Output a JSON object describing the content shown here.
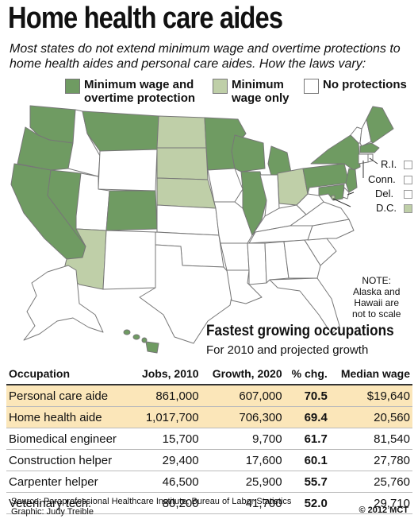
{
  "title": "Home health care aides",
  "subtitle": "Most states do not extend minimum wage and overtime protections to home health aides and personal care aides. How the laws vary:",
  "colors": {
    "full": "#6f9b62",
    "min": "#bfcfa8",
    "none": "#ffffff",
    "border": "#777777",
    "highlight": "#fbe6b9"
  },
  "legend": [
    {
      "line1": "Minimum wage and",
      "line2": "overtime protection",
      "color_key": "full"
    },
    {
      "line1": "Minimum",
      "line2": "wage only",
      "color_key": "min"
    },
    {
      "line1": "No protections",
      "line2": "",
      "color_key": "none"
    }
  ],
  "map": {
    "states_full": [
      "WA",
      "OR",
      "CA",
      "NV",
      "MT",
      "CO",
      "MN",
      "WI",
      "IL",
      "MI",
      "NY",
      "PA",
      "NJ",
      "MD",
      "ME",
      "MA",
      "HI"
    ],
    "states_min": [
      "ND",
      "SD",
      "NE",
      "AZ",
      "OH",
      "DC"
    ],
    "insets": [
      {
        "label": "R.I.",
        "color_key": "none"
      },
      {
        "label": "Conn.",
        "color_key": "none"
      },
      {
        "label": "Del.",
        "color_key": "none"
      },
      {
        "label": "D.C.",
        "color_key": "min"
      }
    ],
    "note_lines": [
      "NOTE:",
      "Alaska and",
      "Hawaii are",
      "not to scale"
    ]
  },
  "table": {
    "title": "Fastest growing occupations",
    "subtitle": "For 2010 and projected growth",
    "headers": [
      "Occupation",
      "Jobs, 2010",
      "Growth, 2020",
      "% chg.",
      "Median wage"
    ],
    "rows": [
      [
        "Personal care aide",
        "861,000",
        "607,000",
        "70.5",
        "$19,640"
      ],
      [
        "Home health aide",
        "1,017,700",
        "706,300",
        "69.4",
        "20,560"
      ],
      [
        "Biomedical engineer",
        "15,700",
        "9,700",
        "61.7",
        "81,540"
      ],
      [
        "Construction helper",
        "29,400",
        "17,600",
        "60.1",
        "27,780"
      ],
      [
        "Carpenter helper",
        "46,500",
        "25,900",
        "55.7",
        "25,760"
      ],
      [
        "Veterinary tech.",
        "80,200",
        "41,700",
        "52.0",
        "29,710"
      ]
    ],
    "highlight_rows": [
      0,
      1
    ]
  },
  "source_line1": "Source: Paraprofessional Healthcare Institute, Bureau of Labor Statistics",
  "source_line2": "Graphic: Judy Treible",
  "copyright": "© 2012 MCT"
}
